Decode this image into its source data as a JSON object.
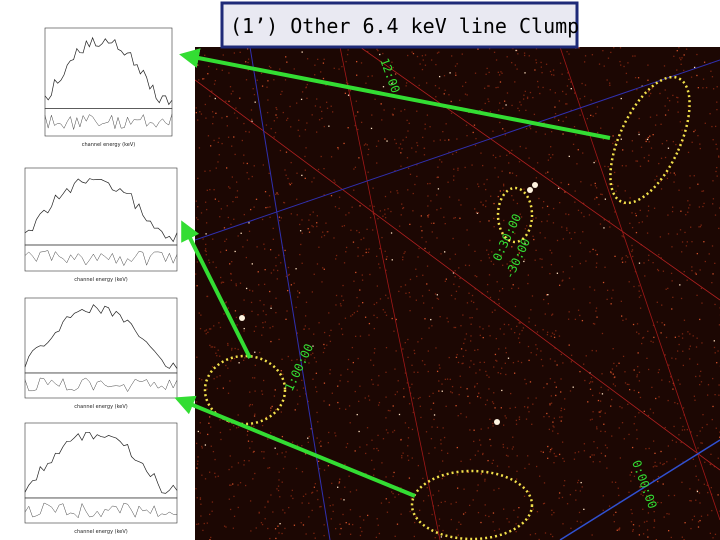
{
  "title": "(1’) Other  6.4 keV line  Clump",
  "coordinates": [
    "12:00",
    "0:30:00",
    "-30:00",
    "1:00:00",
    "0:00:00"
  ],
  "spectra": [
    {
      "x_label": "channel energy (keV)"
    },
    {
      "x_label": "channel energy (keV)"
    },
    {
      "x_label": "channel energy (keV)"
    },
    {
      "x_label": "channel energy (keV)"
    }
  ]
}
